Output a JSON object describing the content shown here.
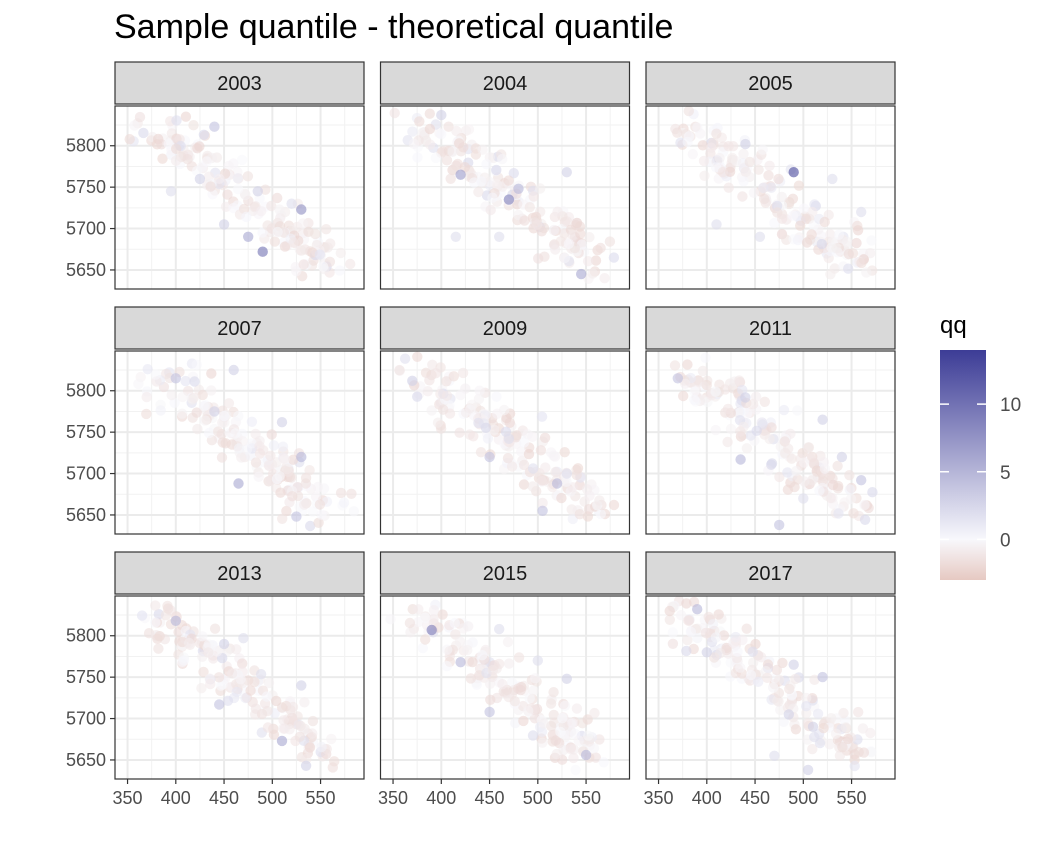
{
  "chart_data": {
    "type": "scatter",
    "title": "Sample quantile - theoretical quantile",
    "xlabel": "",
    "ylabel": "",
    "xlim": [
      337,
      595
    ],
    "ylim": [
      5627,
      5848
    ],
    "x_ticks": [
      350,
      400,
      450,
      500,
      550
    ],
    "y_ticks": [
      5650,
      5700,
      5750,
      5800
    ],
    "grid": true,
    "facets": [
      "2003",
      "2004",
      "2005",
      "2007",
      "2009",
      "2011",
      "2013",
      "2015",
      "2017"
    ],
    "facet_layout": {
      "rows": 3,
      "cols": 3
    },
    "color": {
      "name": "qq",
      "low_color": "#e6c9c2",
      "mid_color": "#f8f8fc",
      "high_color": "#3c3c96",
      "range": [
        -3,
        14
      ],
      "breaks": [
        0,
        5,
        10
      ],
      "legend_position": "right"
    },
    "point_alpha": 0.6,
    "highlights": {
      "2003": [
        [
          440,
          5823,
          4
        ],
        [
          485,
          5745,
          3
        ],
        [
          530,
          5723,
          8
        ],
        [
          490,
          5672,
          10
        ],
        [
          475,
          5690,
          6
        ],
        [
          425,
          5760,
          3
        ],
        [
          450,
          5705,
          3
        ],
        [
          395,
          5745,
          2
        ],
        [
          520,
          5730,
          2
        ]
      ],
      "2004": [
        [
          420,
          5765,
          7
        ],
        [
          470,
          5735,
          9
        ],
        [
          480,
          5748,
          5
        ],
        [
          530,
          5768,
          3
        ],
        [
          545,
          5645,
          6
        ],
        [
          400,
          5837,
          3
        ],
        [
          415,
          5690,
          2
        ],
        [
          460,
          5690,
          2
        ]
      ],
      "2005": [
        [
          490,
          5768,
          13
        ],
        [
          440,
          5802,
          3
        ],
        [
          410,
          5705,
          2
        ],
        [
          455,
          5690,
          2
        ],
        [
          560,
          5720,
          2
        ],
        [
          530,
          5760,
          2
        ]
      ],
      "2007": [
        [
          400,
          5815,
          4
        ],
        [
          460,
          5825,
          3
        ],
        [
          440,
          5775,
          3
        ],
        [
          530,
          5720,
          5
        ],
        [
          465,
          5688,
          6
        ],
        [
          525,
          5648,
          4
        ],
        [
          510,
          5762,
          3
        ]
      ],
      "2009": [
        [
          370,
          5812,
          3
        ],
        [
          450,
          5720,
          4
        ],
        [
          520,
          5688,
          5
        ],
        [
          505,
          5655,
          4
        ],
        [
          470,
          5742,
          2
        ],
        [
          530,
          5700,
          2
        ]
      ],
      "2011": [
        [
          370,
          5815,
          4
        ],
        [
          440,
          5792,
          3
        ],
        [
          435,
          5717,
          5
        ],
        [
          520,
          5765,
          3
        ],
        [
          540,
          5720,
          3
        ],
        [
          560,
          5692,
          4
        ],
        [
          475,
          5638,
          4
        ],
        [
          500,
          5670,
          2
        ]
      ],
      "2013": [
        [
          400,
          5818,
          5
        ],
        [
          450,
          5790,
          3
        ],
        [
          470,
          5797,
          2
        ],
        [
          445,
          5717,
          4
        ],
        [
          510,
          5673,
          6
        ],
        [
          530,
          5740,
          3
        ],
        [
          535,
          5643,
          3
        ]
      ],
      "2015": [
        [
          390,
          5807,
          9
        ],
        [
          420,
          5768,
          5
        ],
        [
          450,
          5708,
          4
        ],
        [
          530,
          5748,
          3
        ],
        [
          550,
          5656,
          5
        ],
        [
          460,
          5808,
          2
        ],
        [
          500,
          5770,
          2
        ]
      ],
      "2017": [
        [
          390,
          5832,
          5
        ],
        [
          400,
          5780,
          3
        ],
        [
          490,
          5765,
          3
        ],
        [
          520,
          5750,
          4
        ],
        [
          485,
          5705,
          3
        ],
        [
          510,
          5690,
          3
        ],
        [
          470,
          5655,
          2
        ],
        [
          505,
          5638,
          3
        ]
      ]
    }
  }
}
